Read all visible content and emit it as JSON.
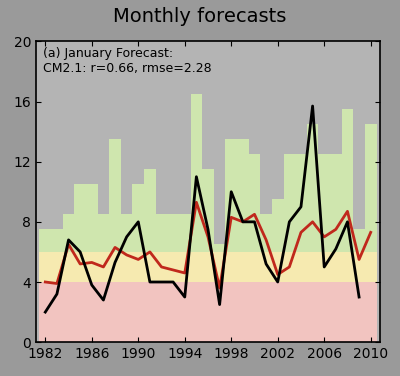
{
  "chart_data": {
    "type": "bar",
    "title": "Monthly forecasts",
    "annotation": "(a) January Forecast:\nCM2.1: r=0.66, rmse=2.28",
    "stacked": true,
    "x": [
      1982,
      1983,
      1984,
      1985,
      1986,
      1987,
      1988,
      1989,
      1990,
      1991,
      1992,
      1993,
      1994,
      1995,
      1996,
      1997,
      1998,
      1999,
      2000,
      2001,
      2002,
      2003,
      2004,
      2005,
      2006,
      2007,
      2008,
      2009,
      2010
    ],
    "series": [
      {
        "type": "bar",
        "color": "#f2c4c0",
        "values": [
          4,
          4,
          4,
          4,
          4,
          4,
          4,
          4,
          4,
          4,
          4,
          4,
          4,
          4,
          4,
          4,
          4,
          4,
          4,
          4,
          4,
          4,
          4,
          4,
          4,
          4,
          4,
          4,
          4
        ]
      },
      {
        "type": "bar",
        "color": "#f6eab0",
        "values": [
          2,
          2,
          2,
          2,
          2,
          2,
          2,
          2,
          2,
          2,
          2,
          2,
          2,
          2,
          2,
          2,
          2,
          2,
          2,
          2,
          2,
          2,
          2,
          2,
          2,
          2,
          2,
          2,
          2
        ]
      },
      {
        "type": "bar",
        "color": "#cfe6ae",
        "values": [
          1.5,
          1.5,
          2.5,
          4.5,
          4.5,
          2.5,
          7.5,
          2.5,
          4.5,
          5.5,
          2.5,
          2.5,
          2.5,
          10.5,
          5.5,
          0.5,
          7.5,
          7.5,
          6.5,
          2.5,
          3.5,
          6.5,
          6.5,
          8.5,
          6.5,
          6.5,
          9.5,
          1.5,
          8.5
        ]
      },
      {
        "type": "line",
        "color": "#c0281c",
        "values": [
          4,
          3.9,
          6.5,
          5.2,
          5.3,
          5.0,
          6.3,
          5.8,
          5.5,
          6.0,
          5.0,
          4.8,
          4.6,
          9.3,
          7.0,
          3.6,
          8.3,
          8.0,
          8.5,
          6.8,
          4.5,
          5.0,
          7.3,
          8.0,
          7.0,
          7.5,
          8.7,
          5.5,
          7.3
        ]
      },
      {
        "type": "line",
        "color": "#000000",
        "values": [
          2,
          3.2,
          6.8,
          6.0,
          3.8,
          2.8,
          5.3,
          7.0,
          8.0,
          4.0,
          4.0,
          4.0,
          3.0,
          11,
          7.5,
          2.5,
          10,
          8,
          8,
          5.2,
          4.0,
          8,
          9,
          15.7,
          5,
          6.2,
          8,
          3,
          null
        ]
      }
    ],
    "xlim": [
      1981.2,
      2010.8
    ],
    "xticks": [
      1982,
      1986,
      1990,
      1994,
      1998,
      2002,
      2006,
      2010
    ],
    "ylim": [
      0,
      20
    ],
    "yticks": [
      0,
      4,
      8,
      12,
      16,
      20
    ]
  }
}
